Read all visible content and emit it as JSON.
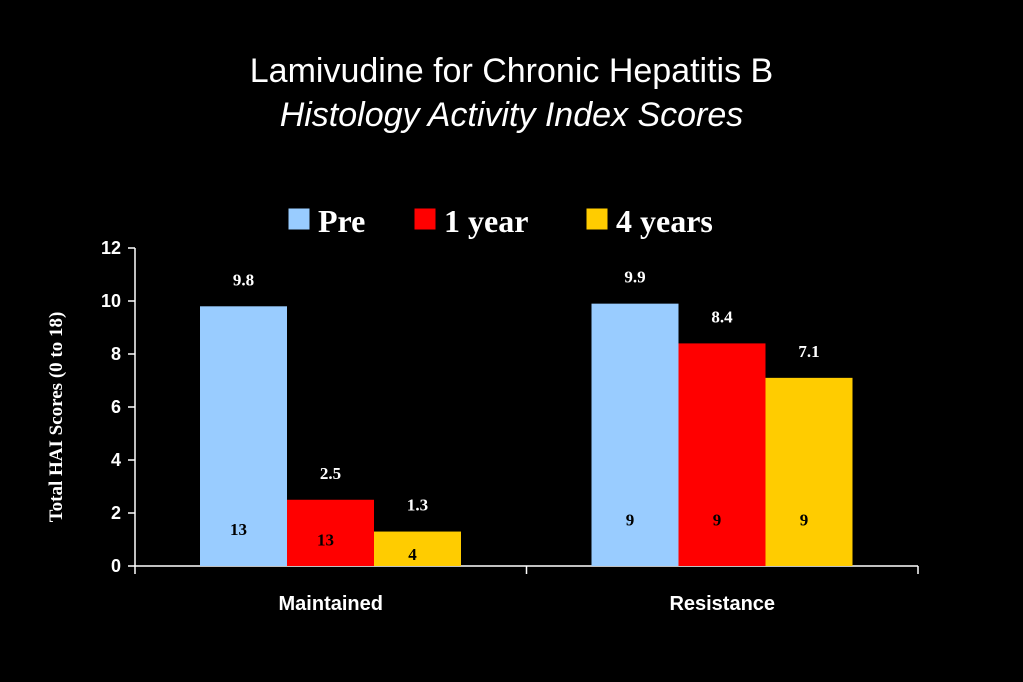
{
  "title_line1": "Lamivudine for Chronic Hepatitis B",
  "title_line2": "Histology Activity Index Scores",
  "chart_data": {
    "type": "bar",
    "categories": [
      "Maintained",
      "Resistance"
    ],
    "ylabel": "Total HAI Scores (0 to 18)",
    "ylim": [
      0,
      12
    ],
    "yticks": [
      0,
      2,
      4,
      6,
      8,
      10,
      12
    ],
    "legend_position": "top",
    "grid": false,
    "series": [
      {
        "name": "Pre",
        "color": "#99CCFF",
        "values": [
          9.8,
          9.9
        ],
        "value_labels": [
          "9.8",
          "9.9"
        ],
        "n_labels": [
          "13",
          "9"
        ]
      },
      {
        "name": "1 year",
        "color": "#FF0000",
        "values": [
          2.5,
          8.4
        ],
        "value_labels": [
          "2.5",
          "8.4"
        ],
        "n_labels": [
          "13",
          "9"
        ]
      },
      {
        "name": "4 years",
        "color": "#FFCC00",
        "values": [
          1.3,
          7.1
        ],
        "value_labels": [
          "1.3",
          "7.1"
        ],
        "n_labels": [
          "4",
          "9"
        ]
      }
    ]
  }
}
